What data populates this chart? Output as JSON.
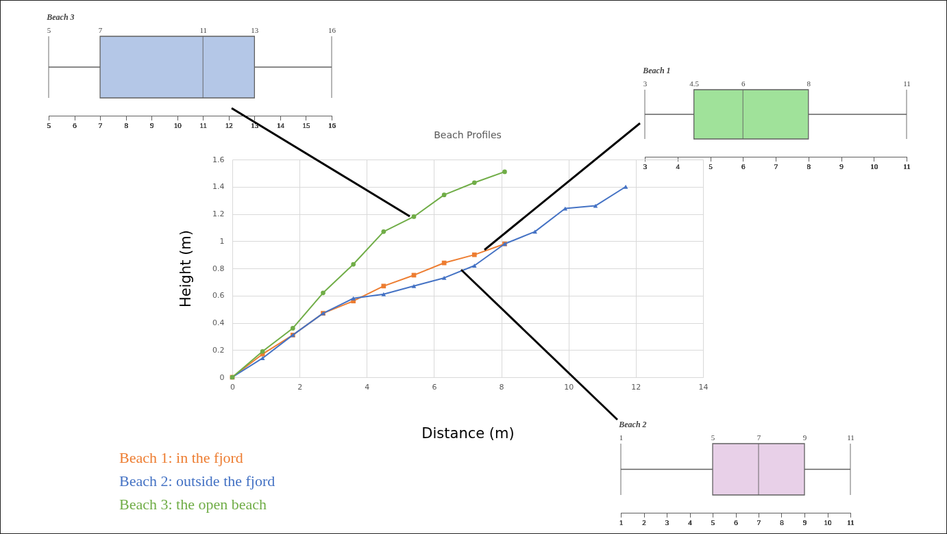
{
  "chart_data": [
    {
      "type": "box",
      "title": "Beach 3",
      "orientation": "horizontal",
      "categories": [
        null
      ],
      "xlim": [
        5,
        16
      ],
      "xticks": [
        5,
        6,
        7,
        8,
        9,
        10,
        11,
        12,
        13,
        14,
        15,
        16
      ],
      "x2lim": [
        5,
        16
      ],
      "x2ticks": [
        5,
        7,
        11,
        13,
        16
      ],
      "series": [
        {
          "color": "#b4c7e7",
          "boxes": [
            {
              "low": 5,
              "q1": 7,
              "median": 11,
              "q3": 13,
              "high": 16
            }
          ]
        }
      ]
    },
    {
      "type": "box",
      "title": "Beach 1",
      "orientation": "horizontal",
      "categories": [
        null
      ],
      "xlim": [
        3,
        11
      ],
      "xticks": [
        3,
        4,
        5,
        6,
        7,
        8,
        9,
        10,
        11
      ],
      "x2lim": [
        3,
        11
      ],
      "x2ticks": [
        3,
        4.5,
        6,
        8,
        11
      ],
      "series": [
        {
          "color": "#a0e29a",
          "boxes": [
            {
              "low": 3,
              "q1": 4.5,
              "median": 6,
              "q3": 8,
              "high": 11
            }
          ]
        }
      ]
    },
    {
      "type": "line",
      "title": "Beach Profiles",
      "xlabel": "Distance (m)",
      "ylabel": "Height (m)",
      "xlim": [
        0,
        14
      ],
      "xticks": [
        0,
        2,
        4,
        6,
        8,
        10,
        12,
        14
      ],
      "ylim": [
        0,
        1.6
      ],
      "yticks": [
        0,
        0.2,
        0.4,
        0.6,
        0.8,
        1,
        1.2,
        1.4,
        1.6
      ],
      "grid": true,
      "series": [
        {
          "name": "Beach 1: in the fjord",
          "color": "#ed7d31",
          "marker": "square",
          "x": [
            0,
            0.9,
            1.8,
            2.7,
            3.6,
            4.5,
            5.4,
            6.3,
            7.2,
            8.1
          ],
          "values": [
            0,
            0.17,
            0.31,
            0.47,
            0.56,
            0.67,
            0.75,
            0.84,
            0.9,
            0.98
          ]
        },
        {
          "name": "Beach 2: outside the fjord",
          "color": "#4472c4",
          "marker": "triangle",
          "x": [
            0,
            0.9,
            1.8,
            2.7,
            3.6,
            4.5,
            5.4,
            6.3,
            7.2,
            8.1,
            9,
            9.9,
            10.8,
            11.7
          ],
          "values": [
            0,
            0.14,
            0.31,
            0.47,
            0.58,
            0.61,
            0.67,
            0.73,
            0.82,
            0.98,
            1.07,
            1.24,
            1.26,
            1.4
          ]
        },
        {
          "name": "Beach 3: the open beach",
          "color": "#70ad47",
          "marker": "circle",
          "x": [
            0,
            0.9,
            1.8,
            2.7,
            3.6,
            4.5,
            5.4,
            6.3,
            7.2,
            8.1
          ],
          "values": [
            0,
            0.19,
            0.36,
            0.62,
            0.83,
            1.07,
            1.18,
            1.34,
            1.43,
            1.51
          ]
        }
      ]
    },
    {
      "type": "box",
      "title": "Beach 2",
      "orientation": "horizontal",
      "categories": [
        null
      ],
      "xlim": [
        1,
        11
      ],
      "xticks": [
        1,
        2,
        3,
        4,
        5,
        6,
        7,
        8,
        9,
        10,
        11
      ],
      "x2lim": [
        1,
        11
      ],
      "x2ticks": [
        1,
        5,
        7,
        9,
        11
      ],
      "series": [
        {
          "color": "#e8d0e8",
          "boxes": [
            {
              "low": 1,
              "q1": 5,
              "median": 7,
              "q3": 9,
              "high": 11
            }
          ]
        }
      ]
    }
  ]
}
